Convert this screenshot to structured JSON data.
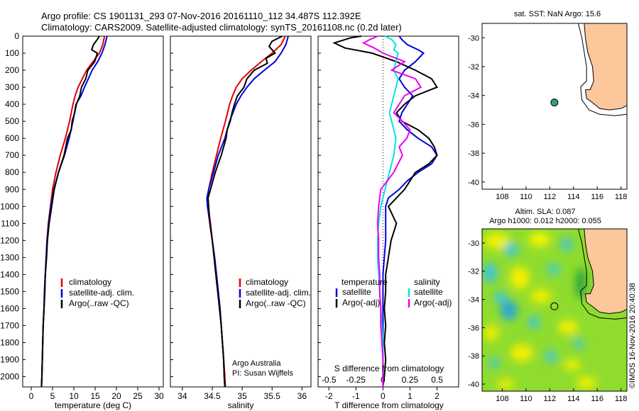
{
  "header": {
    "line1": "Argo profile: CS 1901131_293 07-Nov-2016 20161110_112 34.487S 112.392E",
    "line2": "Climatology: CARS2009. Satellite-adjusted climatology: synTS_20161108.nc (0.2d later)"
  },
  "credits": {
    "program": "Argo Australia",
    "pi": "PI: Susan Wijffels",
    "side_stamp": "©IMOS 16-Nov-2016 20:40:38"
  },
  "colors": {
    "climatology": "#e00000",
    "satellite": "#0000dd",
    "argo": "#000000",
    "salinity_satellite": "#00e5e5",
    "salinity_argo": "#ee00ee",
    "land": "#fbc79b",
    "float_marker": "#2ea37a"
  },
  "legend": {
    "climatology": "climatology",
    "satellite": "satellite-adj. clim.",
    "argo": "Argo(..raw -QC)"
  },
  "diff_legend": {
    "temp_header": "temperature",
    "sal_header": "salinity",
    "satellite": "satellite",
    "argo": "Argo(-adj)"
  },
  "map_top": {
    "title": "sat. SST: NaN  Argo: 15.6",
    "lat_ticks": [
      -30,
      -32,
      -34,
      -36,
      -38,
      -40
    ],
    "lon_ticks": [
      108,
      110,
      112,
      114,
      116,
      118
    ],
    "float_lon": 112.392,
    "float_lat": -34.487
  },
  "map_bottom": {
    "title1": "Altim. SLA: 0.087",
    "title2": "Argo h1000: 0.012 h2000: 0.055",
    "lat_ticks": [
      -30,
      -32,
      -34,
      -36,
      -38,
      -40
    ],
    "lon_ticks": [
      108,
      110,
      112,
      114,
      116,
      118
    ],
    "float_lon": 112.392,
    "float_lat": -34.487
  },
  "chart_data": [
    {
      "type": "line",
      "xlabel": "temperature (deg C)",
      "ylabel": "",
      "xlim": [
        -2,
        31
      ],
      "ylim": [
        2060,
        0
      ],
      "x_ticks": [
        0,
        5,
        10,
        15,
        20,
        25,
        30
      ],
      "y_ticks": [
        0,
        100,
        200,
        300,
        400,
        500,
        600,
        700,
        800,
        900,
        1000,
        1100,
        1200,
        1300,
        1400,
        1500,
        1600,
        1700,
        1800,
        1900,
        2000
      ],
      "series": [
        {
          "name": "climatology",
          "y": [
            0,
            50,
            100,
            150,
            200,
            250,
            300,
            350,
            400,
            500,
            600,
            700,
            800,
            900,
            1000,
            1100,
            1200,
            1300,
            1400,
            1500,
            1600,
            1700,
            1800,
            1900,
            2000,
            2060
          ],
          "x": [
            17.2,
            16.8,
            16.0,
            14.5,
            13.0,
            12.0,
            11.0,
            10.3,
            9.8,
            9.0,
            8.0,
            6.8,
            5.8,
            5.0,
            4.5,
            4.0,
            3.7,
            3.5,
            3.3,
            3.1,
            3.0,
            2.8,
            2.7,
            2.6,
            2.5,
            2.4
          ]
        },
        {
          "name": "satellite-adj. clim.",
          "y": [
            0,
            50,
            100,
            150,
            200,
            250,
            300,
            350,
            400,
            500,
            600,
            700,
            800,
            900,
            1000,
            1100,
            1200,
            1300,
            1400,
            1500,
            1600,
            1700,
            1800,
            1900,
            2000,
            2060
          ],
          "x": [
            17.8,
            17.3,
            16.6,
            15.6,
            14.3,
            13.4,
            12.5,
            11.7,
            10.5,
            9.8,
            8.9,
            7.8,
            6.4,
            5.3,
            4.6,
            4.1,
            3.7,
            3.5,
            3.3,
            3.1,
            3.0,
            2.8,
            2.7,
            2.6,
            2.5,
            2.4
          ]
        },
        {
          "name": "Argo(..raw -QC)",
          "y": [
            0,
            20,
            50,
            80,
            100,
            150,
            200,
            250,
            300,
            350,
            400,
            450,
            500,
            550,
            600,
            700,
            800,
            900,
            1000,
            1100,
            1200,
            1300,
            1400,
            1500,
            1600,
            1700,
            1800,
            1900,
            2000,
            2060
          ],
          "x": [
            16.0,
            15.5,
            14.6,
            14.2,
            15.5,
            14.9,
            13.3,
            12.8,
            11.8,
            11.4,
            10.6,
            10.2,
            9.6,
            9.4,
            8.5,
            7.7,
            6.4,
            5.4,
            4.8,
            4.2,
            3.8,
            3.6,
            3.3,
            3.2,
            3.0,
            2.8,
            2.7,
            2.6,
            2.5,
            2.4
          ]
        }
      ]
    },
    {
      "type": "line",
      "xlabel": "salinity",
      "ylabel": "",
      "xlim": [
        33.8,
        36.15
      ],
      "ylim": [
        2060,
        0
      ],
      "x_ticks": [
        34,
        34.5,
        35,
        35.5,
        36
      ],
      "series": [
        {
          "name": "climatology",
          "y": [
            0,
            50,
            100,
            150,
            200,
            250,
            300,
            350,
            400,
            500,
            600,
            700,
            800,
            900,
            950,
            1000,
            1100,
            1200,
            1300,
            1400,
            1500,
            1600,
            1700,
            1800,
            1900,
            2000,
            2060
          ],
          "x": [
            35.72,
            35.65,
            35.5,
            35.32,
            35.15,
            35.0,
            34.9,
            34.84,
            34.79,
            34.72,
            34.64,
            34.57,
            34.5,
            34.44,
            34.42,
            34.43,
            34.47,
            34.5,
            34.54,
            34.57,
            34.6,
            34.63,
            34.65,
            34.67,
            34.69,
            34.71,
            34.72
          ]
        },
        {
          "name": "satellite-adj. clim.",
          "y": [
            0,
            50,
            100,
            150,
            200,
            250,
            300,
            350,
            400,
            500,
            600,
            700,
            800,
            900,
            950,
            1000,
            1100,
            1200,
            1300,
            1400,
            1500,
            1600,
            1700,
            1800,
            1900,
            2000,
            2060
          ],
          "x": [
            35.77,
            35.73,
            35.65,
            35.55,
            35.37,
            35.2,
            35.08,
            34.98,
            34.9,
            34.79,
            34.71,
            34.6,
            34.52,
            34.44,
            34.41,
            34.42,
            34.46,
            34.5,
            34.54,
            34.57,
            34.6,
            34.63,
            34.65,
            34.67,
            34.69,
            34.7,
            34.71
          ]
        },
        {
          "name": "Argo(..raw -QC)",
          "y": [
            0,
            30,
            60,
            100,
            130,
            160,
            200,
            250,
            300,
            350,
            400,
            450,
            500,
            550,
            600,
            700,
            800,
            900,
            950,
            1000,
            1100,
            1200,
            1300,
            1400,
            1500,
            1600,
            1700,
            1800,
            1900,
            2000,
            2060
          ],
          "x": [
            35.67,
            35.5,
            35.45,
            35.55,
            35.4,
            35.42,
            35.2,
            35.08,
            35.03,
            34.92,
            34.87,
            34.83,
            34.8,
            34.75,
            34.73,
            34.65,
            34.55,
            34.47,
            34.43,
            34.44,
            34.46,
            34.5,
            34.53,
            34.56,
            34.59,
            34.62,
            34.65,
            34.67,
            34.69,
            34.7,
            34.71
          ]
        }
      ]
    },
    {
      "type": "line",
      "xlabel": "T difference from climatology",
      "xlabel_top": "S difference from climatology",
      "xlim": [
        -2.4,
        2.8
      ],
      "ylim": [
        2060,
        0
      ],
      "x_ticks": [
        -2,
        -1,
        0,
        1,
        2
      ],
      "top_ticks": [
        -0.5,
        -0.25,
        0,
        0.25,
        0.5
      ],
      "zero_line": "dotted",
      "series": [
        {
          "name": "temperature satellite",
          "y": [
            0,
            20,
            50,
            80,
            100,
            150,
            200,
            250,
            300,
            350,
            400,
            450,
            500,
            550,
            600,
            650,
            700,
            750,
            800,
            850,
            900,
            950,
            1000,
            1100,
            1200,
            1300,
            1400,
            1500,
            1600,
            1700,
            1800,
            1900,
            2000,
            2060
          ],
          "x": [
            0.6,
            0.7,
            0.9,
            1.3,
            1.5,
            1.2,
            0.8,
            0.6,
            0.8,
            1.1,
            0.9,
            0.7,
            0.6,
            0.9,
            1.3,
            1.8,
            2.0,
            1.8,
            1.3,
            0.9,
            0.6,
            0.2,
            0.1,
            0.1,
            0.1,
            0.05,
            0.0,
            0.0,
            0.0,
            0.0,
            0.0,
            0.0,
            0.0,
            0.0
          ]
        },
        {
          "name": "temperature Argo(-adj)",
          "y": [
            0,
            10,
            20,
            40,
            70,
            100,
            150,
            200,
            250,
            300,
            350,
            400,
            450,
            500,
            550,
            600,
            650,
            700,
            750,
            800,
            850,
            900,
            950,
            1000,
            1100,
            1200,
            1300,
            1400,
            1500,
            1600,
            1700,
            1800,
            1900,
            2000,
            2060
          ],
          "x": [
            -0.8,
            -1.2,
            -1.4,
            -1.8,
            -1.4,
            -0.4,
            0.5,
            1.2,
            1.8,
            2.0,
            1.2,
            0.8,
            0.5,
            0.7,
            1.3,
            1.7,
            1.9,
            2.0,
            1.7,
            1.2,
            1.0,
            0.8,
            0.5,
            0.2,
            0.5,
            0.3,
            0.2,
            0.1,
            0.1,
            0.05,
            0.1,
            0.05,
            0.1,
            0.05,
            0.0
          ]
        },
        {
          "name": "salinity satellite",
          "y": [
            0,
            20,
            50,
            80,
            100,
            150,
            200,
            250,
            300,
            350,
            400,
            450,
            500,
            600,
            700,
            800,
            900,
            1000,
            1100,
            1200,
            1300,
            1400,
            1500,
            1600,
            1700,
            1800,
            1900,
            2000,
            2060
          ],
          "x": [
            0.02,
            0.08,
            0.12,
            0.1,
            0.14,
            0.12,
            0.1,
            0.14,
            0.12,
            0.1,
            0.08,
            0.06,
            0.08,
            0.12,
            0.1,
            0.06,
            0.02,
            -0.02,
            -0.04,
            -0.05,
            -0.05,
            -0.04,
            -0.03,
            -0.02,
            -0.01,
            0.0,
            0.0,
            0.0,
            0.0
          ]
        },
        {
          "name": "salinity Argo(-adj)",
          "y": [
            0,
            20,
            40,
            70,
            100,
            150,
            200,
            250,
            300,
            350,
            400,
            450,
            500,
            550,
            600,
            650,
            700,
            800,
            900,
            1000,
            1100,
            1200,
            1300,
            1400,
            1500,
            1600,
            1700,
            1800,
            1900,
            2000,
            2060
          ],
          "x": [
            -0.05,
            -0.12,
            -0.18,
            -0.08,
            0.0,
            0.2,
            0.08,
            0.3,
            0.35,
            0.2,
            0.15,
            0.1,
            0.18,
            0.25,
            0.22,
            0.15,
            0.18,
            0.1,
            -0.02,
            -0.04,
            -0.05,
            -0.04,
            -0.04,
            -0.03,
            -0.03,
            -0.02,
            -0.02,
            -0.01,
            0.0,
            0.0,
            0.0
          ]
        }
      ]
    }
  ]
}
